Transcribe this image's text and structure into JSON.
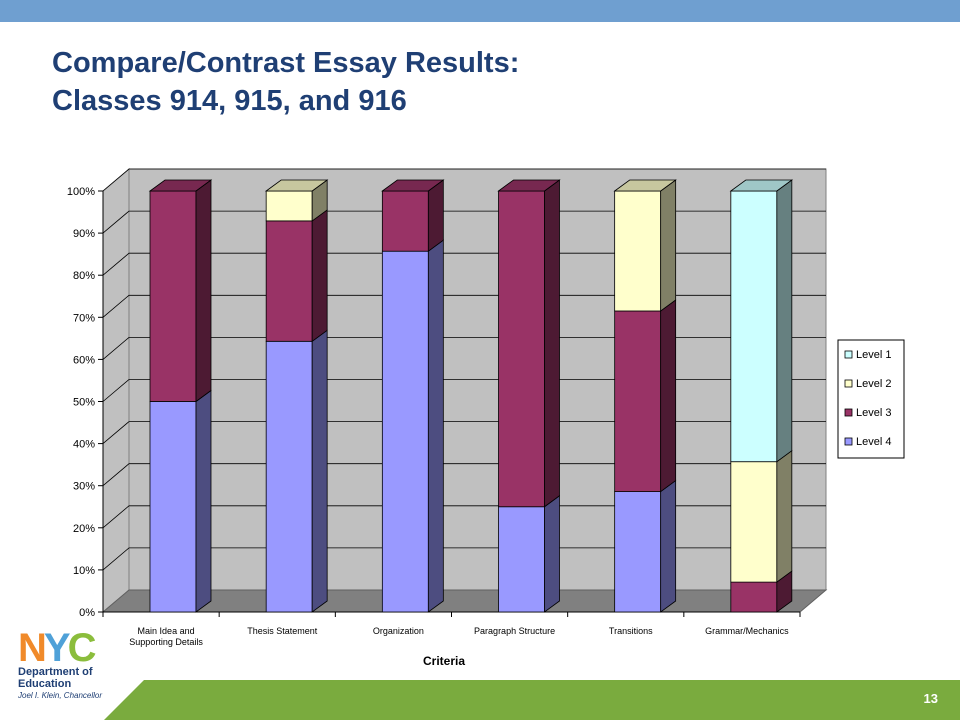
{
  "slide": {
    "title_line1": "Compare/Contrast Essay Results:",
    "title_line2": "Classes 914, 915, and 916",
    "page_number": "13"
  },
  "logo": {
    "n": "N",
    "y": "Y",
    "c": "C",
    "dept_line1": "Department of",
    "dept_line2": "Education",
    "subtitle": "Joel I. Klein, Chancellor"
  },
  "colors": {
    "top_bar": "#6f9fd0",
    "title": "#1f3f74",
    "footer_band": "#7aab3e"
  },
  "chart_data": {
    "type": "bar",
    "stacked": true,
    "three_d": true,
    "categories": [
      [
        "Main Idea and",
        "Supporting Details"
      ],
      [
        "Thesis Statement"
      ],
      [
        "Organization"
      ],
      [
        "Paragraph Structure"
      ],
      [
        "Transitions"
      ],
      [
        "Grammar/Mechanics"
      ]
    ],
    "series": [
      {
        "name": "Level 4",
        "color": "#9999ff",
        "values": [
          50,
          64.3,
          85.7,
          25,
          28.6,
          0
        ]
      },
      {
        "name": "Level 3",
        "color": "#993366",
        "values": [
          50,
          28.6,
          14.3,
          75,
          42.9,
          7.1
        ]
      },
      {
        "name": "Level 2",
        "color": "#ffffcc",
        "values": [
          0,
          7.1,
          0,
          0,
          28.5,
          28.6
        ]
      },
      {
        "name": "Level 1",
        "color": "#ccffff",
        "values": [
          0,
          0,
          0,
          0,
          0,
          64.3
        ]
      }
    ],
    "legend_order": [
      "Level 1",
      "Level 2",
      "Level 3",
      "Level 4"
    ],
    "yticks": [
      "0%",
      "10%",
      "20%",
      "30%",
      "40%",
      "50%",
      "60%",
      "70%",
      "80%",
      "90%",
      "100%"
    ],
    "ylim": [
      0,
      100
    ],
    "xlabel": "Criteria",
    "ylabel": "",
    "title": "",
    "grid": true,
    "legend_position": "right"
  }
}
